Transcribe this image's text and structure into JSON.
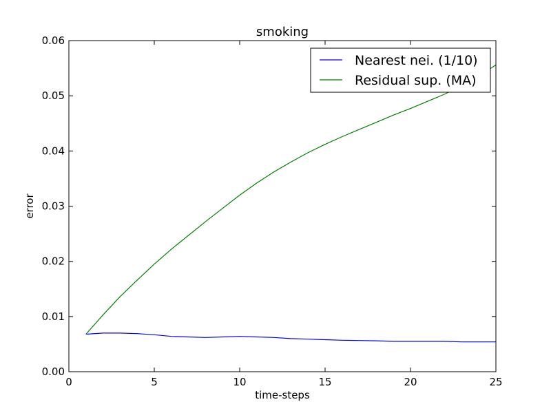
{
  "chart_data": {
    "type": "line",
    "title": "smoking",
    "xlabel": "time-steps",
    "ylabel": "error",
    "xlim": [
      0,
      25
    ],
    "ylim": [
      0,
      0.06
    ],
    "xticks": [
      0,
      5,
      10,
      15,
      20,
      25
    ],
    "xtick_labels": [
      "0",
      "5",
      "10",
      "15",
      "20",
      "25"
    ],
    "yticks": [
      0,
      0.01,
      0.02,
      0.03,
      0.04,
      0.05,
      0.06
    ],
    "ytick_labels": [
      "0.00",
      "0.01",
      "0.02",
      "0.03",
      "0.04",
      "0.05",
      "0.06"
    ],
    "grid": false,
    "legend_position": "top-right",
    "series": [
      {
        "name": "Nearest nei. (1/10)",
        "color": "#0000ff",
        "x": [
          1,
          2,
          3,
          4,
          5,
          6,
          7,
          8,
          9,
          10,
          11,
          12,
          13,
          14,
          15,
          16,
          17,
          18,
          19,
          20,
          21,
          22,
          23,
          24,
          25
        ],
        "y": [
          0.0068,
          0.007,
          0.007,
          0.0069,
          0.0067,
          0.0064,
          0.0063,
          0.0062,
          0.0063,
          0.0064,
          0.0063,
          0.0062,
          0.006,
          0.0059,
          0.0058,
          0.0057,
          0.00565,
          0.0056,
          0.0055,
          0.0055,
          0.0055,
          0.0055,
          0.0054,
          0.0054,
          0.0054
        ]
      },
      {
        "name": "Residual sup. (MA)",
        "color": "#008000",
        "x": [
          1,
          2,
          3,
          4,
          5,
          6,
          7,
          8,
          9,
          10,
          11,
          12,
          13,
          14,
          15,
          16,
          17,
          18,
          19,
          20,
          21,
          22,
          23,
          24,
          25
        ],
        "y": [
          0.0068,
          0.0103,
          0.0136,
          0.0166,
          0.0195,
          0.0222,
          0.0247,
          0.0272,
          0.0296,
          0.032,
          0.0342,
          0.0362,
          0.038,
          0.0397,
          0.0412,
          0.0426,
          0.0439,
          0.0452,
          0.0465,
          0.0477,
          0.049,
          0.0503,
          0.0518,
          0.0535,
          0.0556
        ]
      }
    ]
  }
}
